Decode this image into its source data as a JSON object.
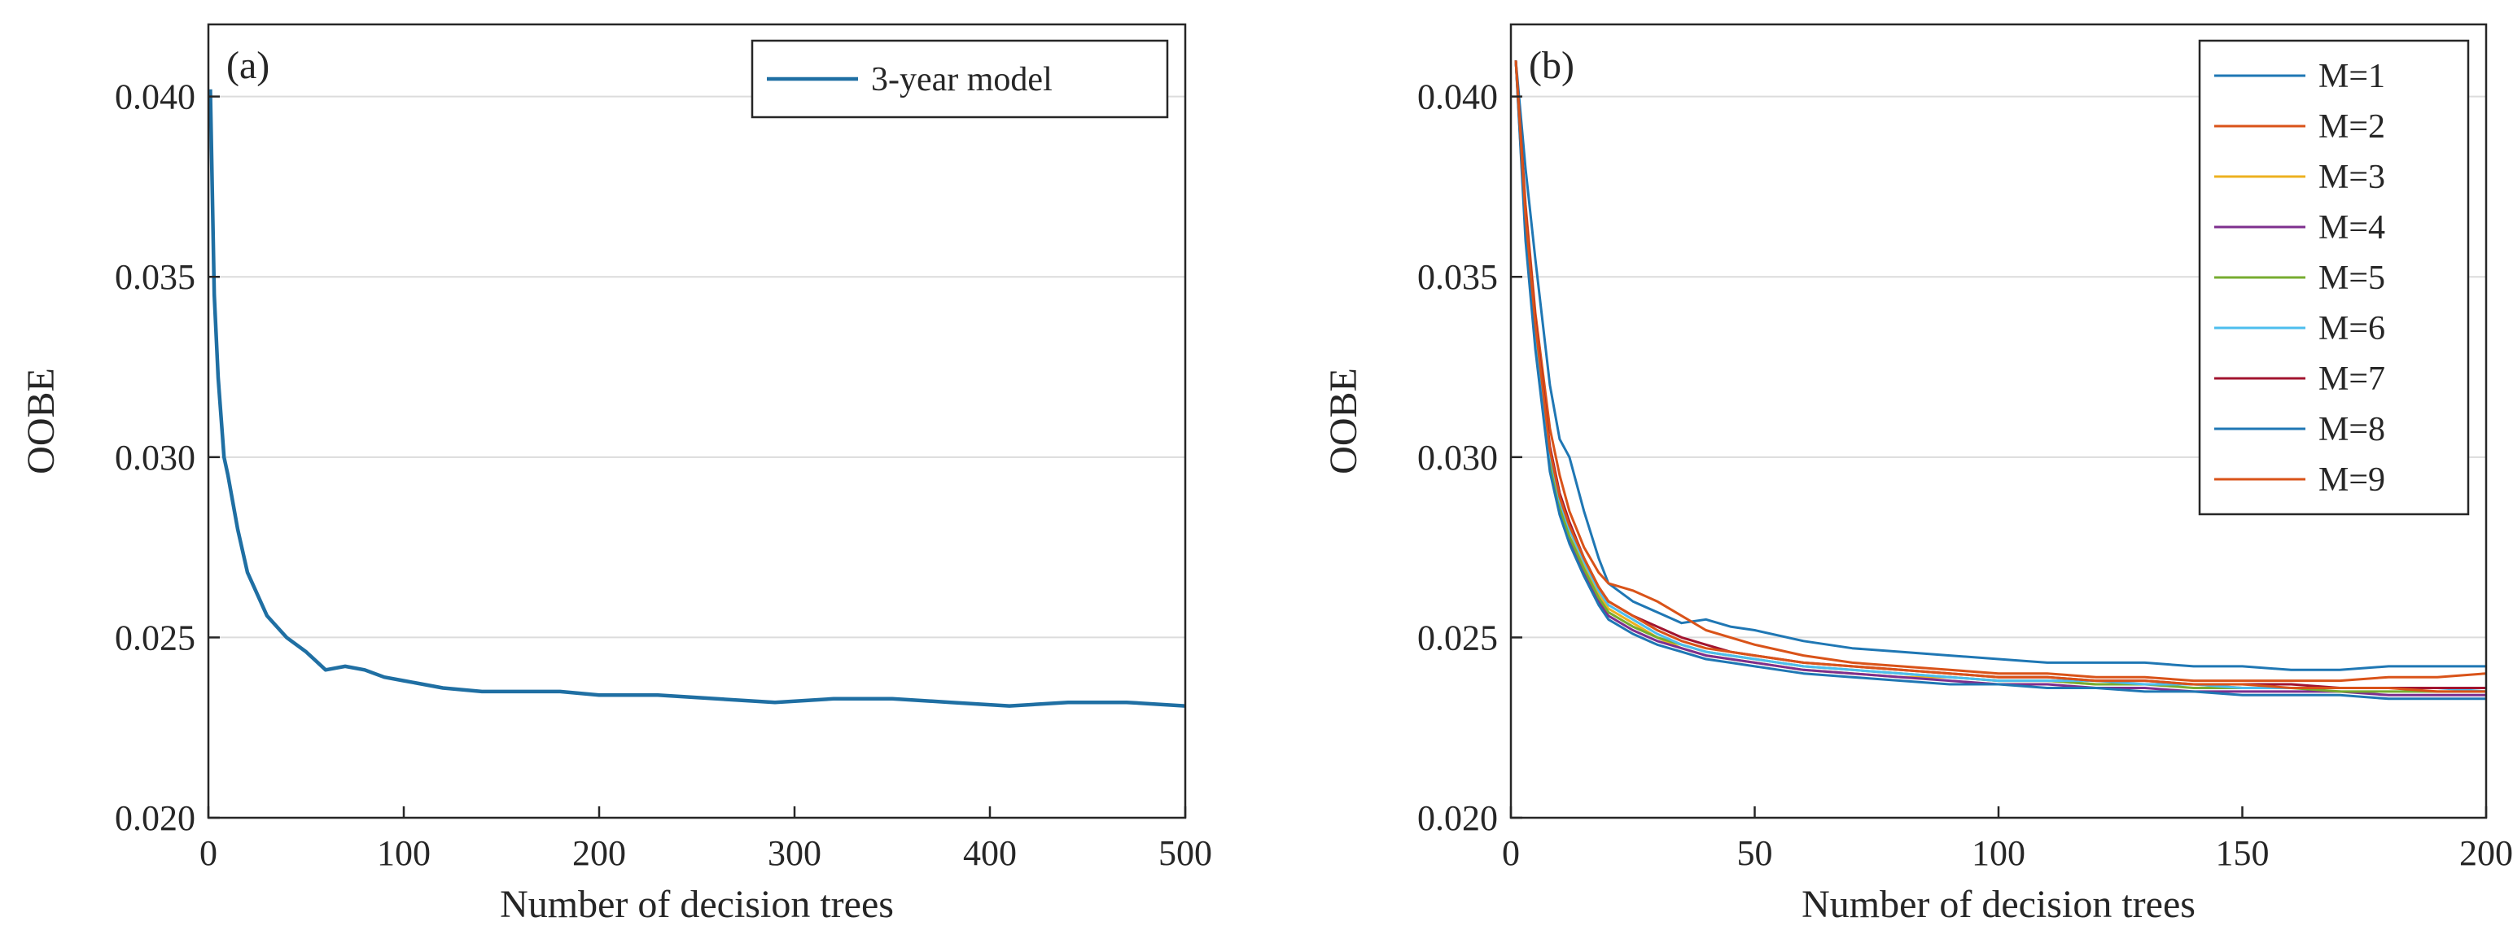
{
  "chart_data": [
    {
      "type": "line",
      "panel_label": "(a)",
      "xlabel": "Number of decision trees",
      "ylabel": "OOBE",
      "xlim": [
        0,
        500
      ],
      "ylim": [
        0.02,
        0.042
      ],
      "xticks": [
        0,
        100,
        200,
        300,
        400,
        500
      ],
      "xtick_labels": [
        "0",
        "100",
        "200",
        "300",
        "400",
        "500"
      ],
      "yticks": [
        0.02,
        0.025,
        0.03,
        0.035,
        0.04
      ],
      "ytick_labels": [
        "0.020",
        "0.025",
        "0.030",
        "0.035",
        "0.040"
      ],
      "grid": "horizontal",
      "legend_position": "top-right",
      "series": [
        {
          "name": "3-year model",
          "color": "#1f6fa3",
          "x": [
            1,
            3,
            5,
            8,
            10,
            15,
            20,
            25,
            30,
            40,
            50,
            60,
            70,
            80,
            90,
            100,
            120,
            140,
            160,
            180,
            200,
            230,
            260,
            290,
            320,
            350,
            380,
            410,
            440,
            470,
            500
          ],
          "values": [
            0.0402,
            0.0345,
            0.0322,
            0.03,
            0.0295,
            0.028,
            0.0268,
            0.0262,
            0.0256,
            0.025,
            0.0246,
            0.0241,
            0.0242,
            0.0241,
            0.0239,
            0.0238,
            0.0236,
            0.0235,
            0.0235,
            0.0235,
            0.0234,
            0.0234,
            0.0233,
            0.0232,
            0.0233,
            0.0233,
            0.0232,
            0.0231,
            0.0232,
            0.0232,
            0.0231
          ]
        }
      ]
    },
    {
      "type": "line",
      "panel_label": "(b)",
      "xlabel": "Number of decision trees",
      "ylabel": "OOBE",
      "xlim": [
        0,
        200
      ],
      "ylim": [
        0.02,
        0.042
      ],
      "xticks": [
        0,
        50,
        100,
        150,
        200
      ],
      "xtick_labels": [
        "0",
        "50",
        "100",
        "150",
        "200"
      ],
      "yticks": [
        0.02,
        0.025,
        0.03,
        0.035,
        0.04
      ],
      "ytick_labels": [
        "0.020",
        "0.025",
        "0.030",
        "0.035",
        "0.040"
      ],
      "grid": "horizontal",
      "legend_position": "top-right",
      "x": [
        1,
        3,
        5,
        8,
        10,
        12,
        15,
        18,
        20,
        25,
        30,
        35,
        40,
        45,
        50,
        60,
        70,
        80,
        90,
        100,
        110,
        120,
        130,
        140,
        150,
        160,
        170,
        180,
        190,
        200
      ],
      "series": [
        {
          "name": "M=1",
          "color": "#1f77b4",
          "values": [
            0.041,
            0.038,
            0.0355,
            0.032,
            0.0305,
            0.03,
            0.0285,
            0.0272,
            0.0265,
            0.026,
            0.0257,
            0.0254,
            0.0255,
            0.0253,
            0.0252,
            0.0249,
            0.0247,
            0.0246,
            0.0245,
            0.0244,
            0.0243,
            0.0243,
            0.0243,
            0.0242,
            0.0242,
            0.0241,
            0.0241,
            0.0242,
            0.0242,
            0.0242
          ]
        },
        {
          "name": "M=2",
          "color": "#d95319",
          "values": [
            0.041,
            0.037,
            0.034,
            0.0308,
            0.0295,
            0.0285,
            0.0275,
            0.0268,
            0.0265,
            0.0263,
            0.026,
            0.0256,
            0.0252,
            0.025,
            0.0248,
            0.0245,
            0.0243,
            0.0242,
            0.0241,
            0.024,
            0.024,
            0.0239,
            0.0239,
            0.0238,
            0.0238,
            0.0238,
            0.0238,
            0.0239,
            0.0239,
            0.024
          ]
        },
        {
          "name": "M=3",
          "color": "#edb120",
          "values": [
            0.041,
            0.0365,
            0.0335,
            0.03,
            0.0288,
            0.028,
            0.027,
            0.0262,
            0.0258,
            0.0254,
            0.025,
            0.0247,
            0.0245,
            0.0244,
            0.0243,
            0.0241,
            0.024,
            0.0239,
            0.0239,
            0.0238,
            0.0238,
            0.0237,
            0.0237,
            0.0237,
            0.0236,
            0.0236,
            0.0236,
            0.0236,
            0.0236,
            0.0236
          ]
        },
        {
          "name": "M=4",
          "color": "#7e2f8e",
          "values": [
            0.041,
            0.0362,
            0.0332,
            0.0298,
            0.0285,
            0.0277,
            0.0268,
            0.026,
            0.0256,
            0.0252,
            0.0249,
            0.0247,
            0.0245,
            0.0244,
            0.0243,
            0.0241,
            0.024,
            0.0239,
            0.0238,
            0.0237,
            0.0237,
            0.0236,
            0.0236,
            0.0235,
            0.0235,
            0.0235,
            0.0235,
            0.0234,
            0.0234,
            0.0234
          ]
        },
        {
          "name": "M=5",
          "color": "#77ac30",
          "values": [
            0.041,
            0.0364,
            0.0334,
            0.0299,
            0.0286,
            0.0278,
            0.0269,
            0.0261,
            0.0257,
            0.0253,
            0.025,
            0.0248,
            0.0246,
            0.0245,
            0.0244,
            0.0242,
            0.0241,
            0.024,
            0.0239,
            0.0238,
            0.0238,
            0.0237,
            0.0237,
            0.0236,
            0.0236,
            0.0236,
            0.0235,
            0.0235,
            0.0235,
            0.0235
          ]
        },
        {
          "name": "M=6",
          "color": "#4dbeee",
          "values": [
            0.041,
            0.0366,
            0.0336,
            0.0301,
            0.0288,
            0.028,
            0.0271,
            0.0263,
            0.0259,
            0.0255,
            0.0251,
            0.0248,
            0.0246,
            0.0245,
            0.0244,
            0.0242,
            0.0241,
            0.024,
            0.0239,
            0.0238,
            0.0238,
            0.0238,
            0.0237,
            0.0237,
            0.0236,
            0.0236,
            0.0236,
            0.0236,
            0.0236,
            0.0235
          ]
        },
        {
          "name": "M=7",
          "color": "#a2142f",
          "values": [
            0.041,
            0.0368,
            0.0338,
            0.0303,
            0.029,
            0.0282,
            0.0272,
            0.0264,
            0.026,
            0.0256,
            0.0253,
            0.025,
            0.0248,
            0.0246,
            0.0245,
            0.0243,
            0.0242,
            0.0241,
            0.024,
            0.0239,
            0.0239,
            0.0238,
            0.0238,
            0.0237,
            0.0237,
            0.0237,
            0.0236,
            0.0236,
            0.0236,
            0.0236
          ]
        },
        {
          "name": "M=8",
          "color": "#1f77b4",
          "values": [
            0.041,
            0.036,
            0.033,
            0.0296,
            0.0284,
            0.0276,
            0.0267,
            0.0259,
            0.0255,
            0.0251,
            0.0248,
            0.0246,
            0.0244,
            0.0243,
            0.0242,
            0.024,
            0.0239,
            0.0238,
            0.0237,
            0.0237,
            0.0236,
            0.0236,
            0.0235,
            0.0235,
            0.0234,
            0.0234,
            0.0234,
            0.0233,
            0.0233,
            0.0233
          ]
        },
        {
          "name": "M=9",
          "color": "#d95319",
          "values": [
            0.041,
            0.0367,
            0.0337,
            0.0302,
            0.0289,
            0.0281,
            0.0272,
            0.0264,
            0.026,
            0.0256,
            0.0252,
            0.0249,
            0.0247,
            0.0246,
            0.0245,
            0.0243,
            0.0242,
            0.0241,
            0.024,
            0.0239,
            0.0239,
            0.0238,
            0.0238,
            0.0237,
            0.0237,
            0.0236,
            0.0236,
            0.0236,
            0.0235,
            0.0235
          ]
        }
      ]
    }
  ]
}
